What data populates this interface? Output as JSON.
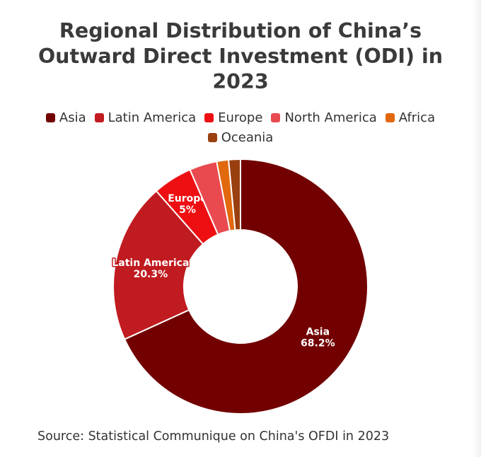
{
  "title": "Regional Distribution of China’s Outward Direct Investment (ODI) in 2023",
  "source": "Source: Statistical Communique on China's OFDI in 2023",
  "chart_data": {
    "type": "pie",
    "donut": true,
    "title": "Regional Distribution of China’s Outward Direct Investment (ODI) in 2023",
    "legend_position": "top",
    "categories": [
      "Asia",
      "Latin America",
      "Europe",
      "North America",
      "Africa",
      "Oceania"
    ],
    "values": [
      68.2,
      20.3,
      5,
      3.5,
      1.5,
      1.5
    ],
    "labels": [
      "68.2%",
      "20.3%",
      "5%",
      "",
      "",
      ""
    ],
    "colors": [
      "#720000",
      "#c01b20",
      "#ee0f12",
      "#e84a50",
      "#e2680e",
      "#9a3f10"
    ]
  }
}
